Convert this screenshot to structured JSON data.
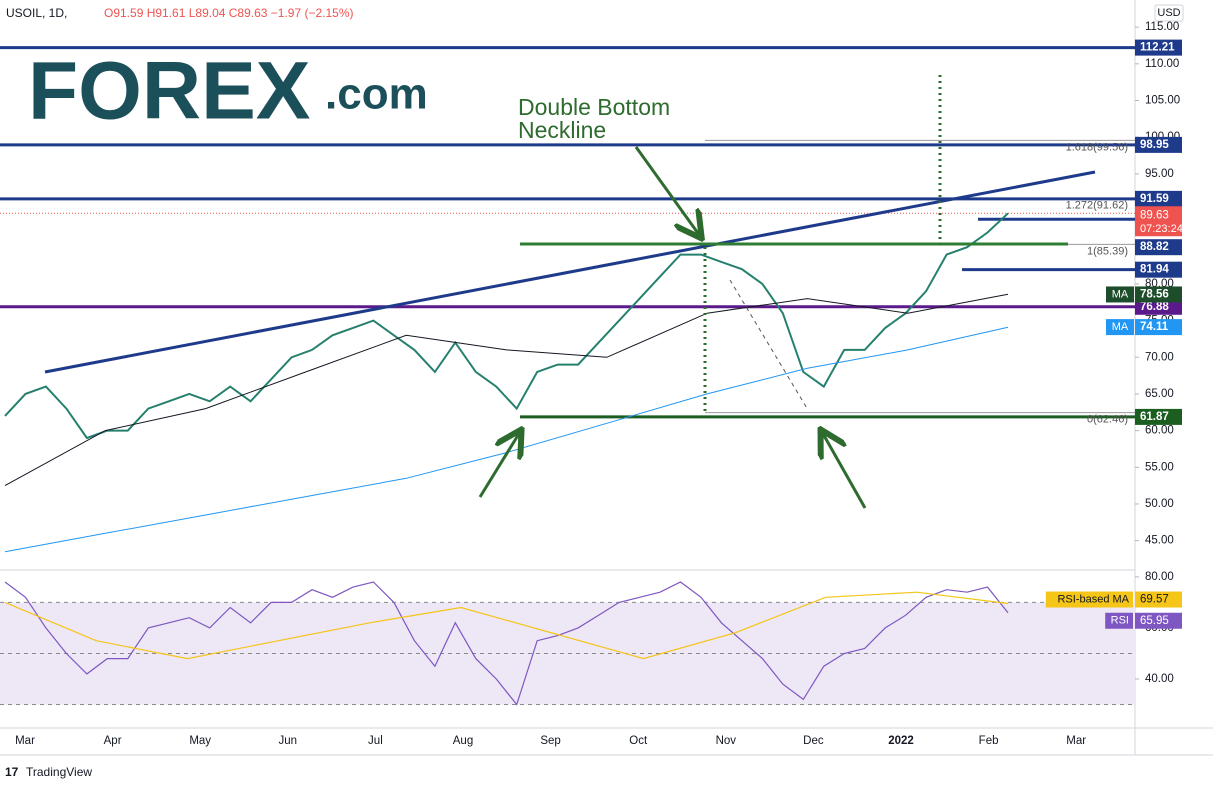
{
  "header": {
    "symbol": "USOIL, 1D,",
    "ohlc": "O91.59 H91.61 L89.04 C89.63 −1.97 (−2.15%)"
  },
  "logo": {
    "main": "FOREX",
    "suffix": ".com"
  },
  "annotation": [
    "Double Bottom",
    "Neckline"
  ],
  "currency": "USD",
  "footer": "TradingView",
  "chart_data": {
    "type": "line",
    "xticks": [
      "Mar",
      "Apr",
      "May",
      "Jun",
      "Jul",
      "Aug",
      "Sep",
      "Oct",
      "Nov",
      "Dec",
      "2022",
      "Feb",
      "Mar"
    ],
    "ylim": [
      41,
      118.7
    ],
    "yticks": [
      {
        "value": 45,
        "label": "45.00"
      },
      {
        "value": 50,
        "label": "50.00"
      },
      {
        "value": 55,
        "label": "55.00"
      },
      {
        "value": 60,
        "label": "60.00"
      },
      {
        "value": 65,
        "label": "65.00"
      },
      {
        "value": 70,
        "label": "70.00"
      },
      {
        "value": 75,
        "label": "75.00"
      },
      {
        "value": 80,
        "label": "80.00"
      },
      {
        "value": 85,
        "label": "85.00"
      },
      {
        "value": 90,
        "label": "90.00"
      },
      {
        "value": 95,
        "label": "95.00"
      },
      {
        "value": 100,
        "label": "100.00"
      },
      {
        "value": 105,
        "label": "105.00"
      },
      {
        "value": 110,
        "label": "110.00"
      },
      {
        "value": 115,
        "label": "115.00"
      }
    ],
    "series": [
      {
        "color": "#26806e",
        "values": [
          62,
          65,
          66,
          63,
          59,
          60,
          60,
          63,
          64,
          65,
          64,
          66,
          64,
          67,
          70,
          71,
          73,
          74,
          75,
          73,
          71,
          68,
          72,
          68,
          66,
          63,
          68,
          69,
          69,
          72,
          75,
          78,
          81,
          84,
          84,
          83,
          82,
          80,
          76,
          68,
          66,
          71,
          71,
          74,
          76,
          79,
          84,
          85,
          87,
          89.63
        ]
      },
      {
        "color": "#131722",
        "values": [
          52.5,
          60,
          63,
          68,
          73,
          71,
          70,
          76,
          78,
          76,
          78.6
        ]
      },
      {
        "color": "#2196f3",
        "values": [
          43.5,
          46,
          48.5,
          51,
          53.5,
          57,
          61,
          65,
          68.5,
          71,
          74.1
        ]
      }
    ],
    "levels": [
      {
        "value": 112.21,
        "color": "#1e3a8a"
      },
      {
        "value": 98.95,
        "color": "#1e3a8a"
      },
      {
        "value": 91.59,
        "color": "#1e3a8a"
      },
      {
        "value": 88.82,
        "color": "#1e3a8a"
      },
      {
        "value": 81.94,
        "color": "#1e3a8a"
      },
      {
        "value": 76.88,
        "color": "#5b1a8c"
      },
      {
        "value": 61.87,
        "color": "#1b5e20"
      }
    ],
    "last": {
      "value": 89.63,
      "countdown": "07:23:24",
      "color": "#ef5350"
    },
    "ma_labels": [
      {
        "tag": "MA",
        "value": 78.56,
        "color": "#1e4d2b"
      },
      {
        "tag": "MA",
        "value": 74.11,
        "color": "#2196f3"
      }
    ],
    "fib": [
      {
        "label": "1.618(99.56)",
        "value": 99.56
      },
      {
        "label": "1.272(91.62)",
        "value": 91.62
      },
      {
        "label": "1(85.39)",
        "value": 85.39
      },
      {
        "label": "0(62.46)",
        "value": 62.46
      }
    ],
    "rsi": {
      "ylim": [
        20.8,
        82.7
      ],
      "yticks": [
        {
          "value": 80,
          "label": "80.00"
        },
        {
          "value": 60,
          "label": "60.00"
        },
        {
          "value": 40,
          "label": "40.00"
        }
      ],
      "bands": [
        70,
        50,
        30
      ],
      "series": [
        {
          "name": "RSI",
          "color": "#7e57c2",
          "value": 65.95,
          "values": [
            78,
            72,
            60,
            50,
            42,
            48,
            48,
            60,
            62,
            64,
            60,
            68,
            62,
            70,
            70,
            75,
            72,
            76,
            78,
            70,
            55,
            45,
            62,
            48,
            40,
            30,
            55,
            57,
            60,
            65,
            70,
            72,
            74,
            78,
            72,
            62,
            55,
            48,
            38,
            32,
            45,
            50,
            52,
            60,
            65,
            72,
            75,
            74,
            76,
            65.95
          ]
        },
        {
          "name": "RSI-based MA",
          "color": "#f5c518",
          "value": 69.57,
          "values": [
            70,
            55,
            48,
            55,
            62,
            68,
            58,
            48,
            58,
            72,
            74,
            69.57
          ]
        }
      ]
    }
  }
}
